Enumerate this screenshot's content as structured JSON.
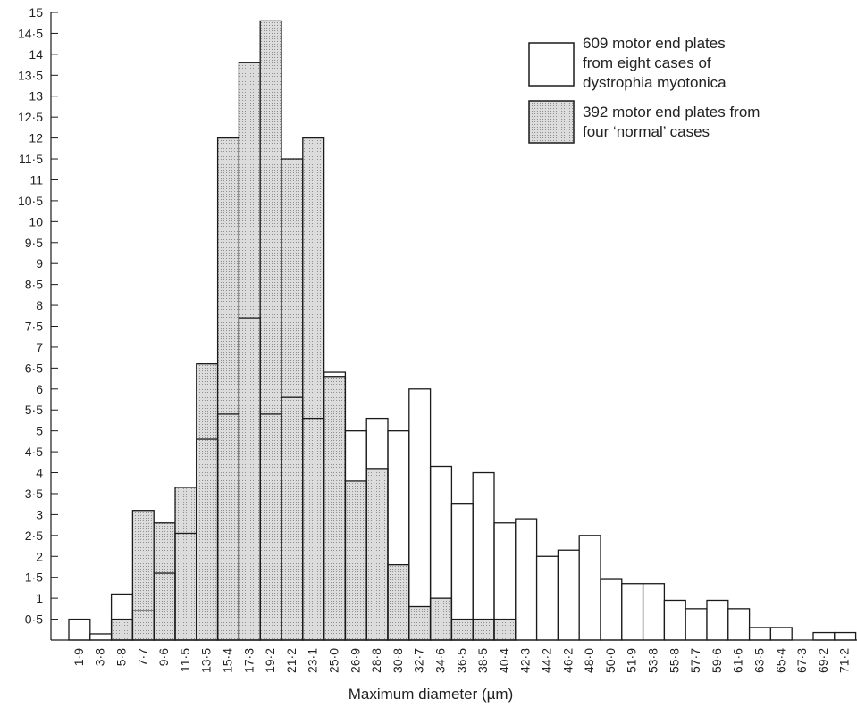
{
  "chart_data": {
    "type": "bar",
    "xlabel": "Maximum diameter (µm)",
    "categories": [
      "1·9",
      "3·8",
      "5·8",
      "7·7",
      "9·6",
      "11·5",
      "13·5",
      "15·4",
      "17·3",
      "19·2",
      "21·2",
      "23·1",
      "25·0",
      "26·9",
      "28·8",
      "30·8",
      "32·7",
      "34·6",
      "36·5",
      "38·5",
      "40·4",
      "42·3",
      "44·2",
      "46·2",
      "48·0",
      "50·0",
      "51·9",
      "53·8",
      "55·8",
      "57·7",
      "59·6",
      "61·6",
      "63·5",
      "65·4",
      "67·3",
      "69·2",
      "71·2"
    ],
    "ylim": [
      0,
      15
    ],
    "yticks": [
      {
        "value": 0.5,
        "label": "0·5"
      },
      {
        "value": 1,
        "label": "1"
      },
      {
        "value": 1.5,
        "label": "1·5"
      },
      {
        "value": 2,
        "label": "2"
      },
      {
        "value": 2.5,
        "label": "2·5"
      },
      {
        "value": 3,
        "label": "3"
      },
      {
        "value": 3.5,
        "label": "3·5"
      },
      {
        "value": 4,
        "label": "4"
      },
      {
        "value": 4.5,
        "label": "4·5"
      },
      {
        "value": 5,
        "label": "5"
      },
      {
        "value": 5.5,
        "label": "5·5"
      },
      {
        "value": 6,
        "label": "6"
      },
      {
        "value": 6.5,
        "label": "6·5"
      },
      {
        "value": 7,
        "label": "7"
      },
      {
        "value": 7.5,
        "label": "7·5"
      },
      {
        "value": 8,
        "label": "8"
      },
      {
        "value": 8.5,
        "label": "8·5"
      },
      {
        "value": 9,
        "label": "9"
      },
      {
        "value": 9.5,
        "label": "9·5"
      },
      {
        "value": 10,
        "label": "10"
      },
      {
        "value": 10.5,
        "label": "10·5"
      },
      {
        "value": 11,
        "label": "11"
      },
      {
        "value": 11.5,
        "label": "11·5"
      },
      {
        "value": 12,
        "label": "12"
      },
      {
        "value": 12.5,
        "label": "12·5"
      },
      {
        "value": 13,
        "label": "13"
      },
      {
        "value": 13.5,
        "label": "13·5"
      },
      {
        "value": 14,
        "label": "14"
      },
      {
        "value": 14.5,
        "label": "14·5"
      },
      {
        "value": 15,
        "label": "15"
      }
    ],
    "series": [
      {
        "name": "609 motor end plates from eight cases of dystrophia myotonica",
        "legend_lines": [
          "609 motor end plates",
          "from eight cases of",
          "dystrophia myotonica"
        ],
        "style": "open",
        "values": [
          0.5,
          0.15,
          1.1,
          0.7,
          1.6,
          2.55,
          4.8,
          5.4,
          7.7,
          5.4,
          5.8,
          5.3,
          6.4,
          5.0,
          5.3,
          5.0,
          6.0,
          4.15,
          3.25,
          4.0,
          2.8,
          2.9,
          2.0,
          2.15,
          2.5,
          1.45,
          1.35,
          1.35,
          0.95,
          0.75,
          0.95,
          0.75,
          0.3,
          0.3,
          0.0,
          0.18,
          0.18
        ]
      },
      {
        "name": "392 motor end plates from four 'normal' cases",
        "legend_lines": [
          "392 motor end plates from",
          "four ‘normal’ cases"
        ],
        "style": "stippled",
        "values": [
          0,
          0,
          0.5,
          3.1,
          2.8,
          3.65,
          6.6,
          12.0,
          13.8,
          14.8,
          11.5,
          12.0,
          6.3,
          3.8,
          4.1,
          1.8,
          0.8,
          1.0,
          0.5,
          0.5,
          0.5,
          0,
          0,
          0,
          0,
          0,
          0,
          0,
          0,
          0,
          0,
          0,
          0,
          0,
          0,
          0,
          0
        ]
      }
    ],
    "legend_position": "top-right",
    "grid": false,
    "colors": {
      "stipple_base": "#dcdcdc",
      "stipple_dot": "#8f8f8f",
      "stroke": "#1a1a1a"
    }
  }
}
